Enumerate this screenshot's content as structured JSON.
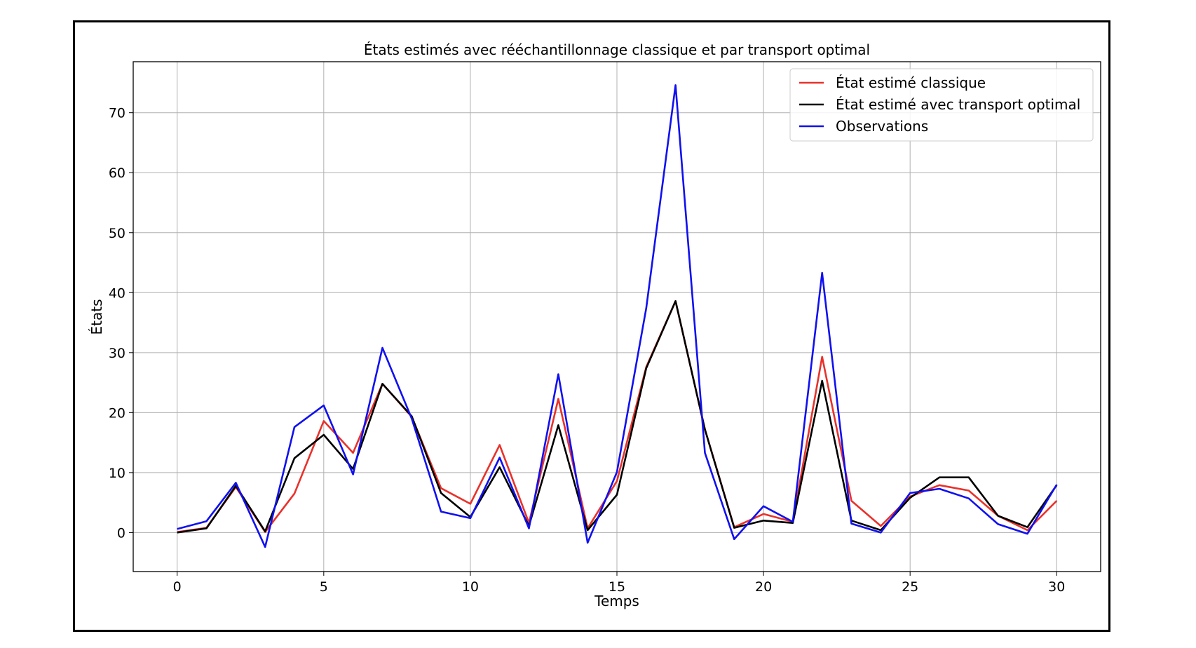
{
  "chart_data": {
    "type": "line",
    "title": "États estimés avec rééchantillonnage classique et par transport optimal",
    "xlabel": "Temps",
    "ylabel": "États",
    "xlim": [
      -1.5,
      31.5
    ],
    "ylim": [
      -6.5,
      78.5
    ],
    "xticks": [
      0,
      5,
      10,
      15,
      20,
      25,
      30
    ],
    "yticks": [
      0,
      10,
      20,
      30,
      40,
      50,
      60,
      70
    ],
    "grid": true,
    "legend_position": "top-right",
    "x": [
      0,
      1,
      2,
      3,
      4,
      5,
      6,
      7,
      8,
      9,
      10,
      11,
      12,
      13,
      14,
      15,
      16,
      17,
      18,
      19,
      20,
      21,
      22,
      23,
      24,
      25,
      26,
      27,
      28,
      29,
      30
    ],
    "series": [
      {
        "name": "État estimé classique",
        "color": "#e8322b",
        "values": [
          0.1,
          0.8,
          7.6,
          0.1,
          6.5,
          18.6,
          13.3,
          24.8,
          19.3,
          7.4,
          4.8,
          14.6,
          1.6,
          22.3,
          0.7,
          8.6,
          27.6,
          38.6,
          17.2,
          0.9,
          3.1,
          1.8,
          29.3,
          5.3,
          1.1,
          6.0,
          7.9,
          7.0,
          2.8,
          0.4,
          5.3
        ]
      },
      {
        "name": "État estimé avec transport optimal",
        "color": "#000000",
        "values": [
          0.0,
          0.7,
          7.8,
          0.2,
          12.4,
          16.3,
          10.6,
          24.8,
          19.4,
          6.6,
          2.6,
          10.9,
          1.1,
          17.9,
          0.4,
          6.3,
          27.4,
          38.6,
          17.2,
          0.8,
          2.0,
          1.6,
          25.3,
          2.0,
          0.4,
          5.8,
          9.2,
          9.2,
          2.8,
          0.9,
          7.9
        ]
      },
      {
        "name": "Observations",
        "color": "#1010f0",
        "values": [
          0.6,
          1.9,
          8.3,
          -2.4,
          17.6,
          21.2,
          9.7,
          30.8,
          19.0,
          3.5,
          2.4,
          12.5,
          0.7,
          26.4,
          -1.7,
          10.1,
          37.4,
          74.6,
          13.3,
          -1.1,
          4.4,
          1.8,
          43.3,
          1.5,
          0.0,
          6.6,
          7.3,
          5.7,
          1.4,
          -0.2,
          8.0
        ]
      }
    ]
  }
}
